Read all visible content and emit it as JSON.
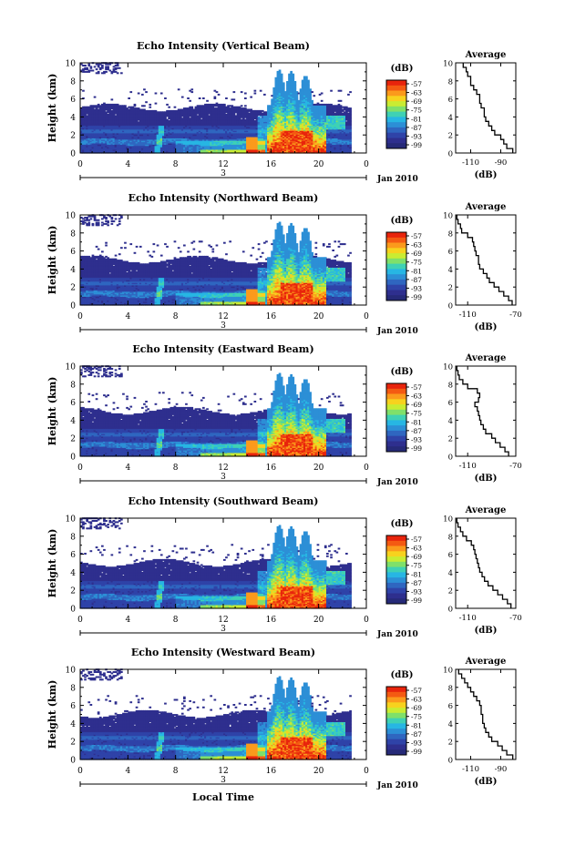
{
  "chart_data": [
    {
      "type": "heatmap",
      "title": "Echo Intensity (Vertical Beam)",
      "ylabel": "Height (km)",
      "yticks": [
        "0",
        "2",
        "4",
        "6",
        "8",
        "10"
      ],
      "ylim": [
        0,
        10
      ],
      "xticks": [
        "0",
        "4",
        "8",
        "12",
        "16",
        "20",
        "0"
      ],
      "xlim": [
        0,
        24
      ],
      "day_label": "3",
      "date_label": "Jan 2010",
      "colorbar": {
        "unit": "(dB)",
        "ticks": [
          "-57",
          "-63",
          "-69",
          "-75",
          "-81",
          "-87",
          "-93",
          "-99"
        ]
      },
      "profile": {
        "title": "Average",
        "xticks": [
          "-110",
          "-90"
        ],
        "xlim": [
          -120,
          -80
        ],
        "xlabel": "(dB)",
        "yticks": [
          "0",
          "2",
          "4",
          "6",
          "8",
          "10"
        ],
        "heights": [
          0,
          0.5,
          1,
          1.5,
          2,
          2.5,
          3,
          3.5,
          4,
          4.5,
          5,
          5.5,
          6,
          6.5,
          7,
          7.5,
          8,
          8.5,
          9,
          9.5
        ],
        "values": [
          -82,
          -86,
          -88,
          -90,
          -94,
          -96,
          -98,
          -100,
          -101,
          -101,
          -103,
          -104,
          -104,
          -106,
          -108,
          -110,
          -110,
          -112,
          -113,
          -115
        ]
      }
    },
    {
      "type": "heatmap",
      "title": "Echo Intensity (Northward Beam)",
      "ylabel": "Height (km)",
      "yticks": [
        "0",
        "2",
        "4",
        "6",
        "8",
        "10"
      ],
      "ylim": [
        0,
        10
      ],
      "xticks": [
        "0",
        "4",
        "8",
        "12",
        "16",
        "20",
        "0"
      ],
      "xlim": [
        0,
        24
      ],
      "day_label": "3",
      "date_label": "Jan 2010",
      "colorbar": {
        "unit": "(dB)",
        "ticks": [
          "-57",
          "-63",
          "-69",
          "-75",
          "-81",
          "-87",
          "-93",
          "-99"
        ]
      },
      "profile": {
        "title": "Average",
        "xticks": [
          "-110",
          "-70"
        ],
        "xlim": [
          -120,
          -70
        ],
        "xlabel": "(dB)",
        "yticks": [
          "0",
          "2",
          "4",
          "6",
          "8",
          "10"
        ],
        "heights": [
          0,
          0.5,
          1,
          1.5,
          2,
          2.5,
          3,
          3.5,
          4,
          4.5,
          5,
          5.5,
          6,
          6.5,
          7,
          7.5,
          8,
          8.5,
          9,
          9.5
        ],
        "values": [
          -73,
          -76,
          -80,
          -84,
          -88,
          -92,
          -94,
          -97,
          -100,
          -101,
          -101,
          -103,
          -104,
          -105,
          -106,
          -110,
          -115,
          -116,
          -118,
          -119
        ]
      }
    },
    {
      "type": "heatmap",
      "title": "Echo Intensity (Eastward Beam)",
      "ylabel": "Height (km)",
      "yticks": [
        "0",
        "2",
        "4",
        "6",
        "8",
        "10"
      ],
      "ylim": [
        0,
        10
      ],
      "xticks": [
        "0",
        "4",
        "8",
        "12",
        "16",
        "20",
        "0"
      ],
      "xlim": [
        0,
        24
      ],
      "day_label": "3",
      "date_label": "Jan 2010",
      "colorbar": {
        "unit": "(dB)",
        "ticks": [
          "-57",
          "-63",
          "-69",
          "-75",
          "-81",
          "-87",
          "-93",
          "-99"
        ]
      },
      "profile": {
        "title": "Average",
        "xticks": [
          "-110",
          "-70"
        ],
        "xlim": [
          -120,
          -70
        ],
        "xlabel": "(dB)",
        "yticks": [
          "0",
          "2",
          "4",
          "6",
          "8",
          "10"
        ],
        "heights": [
          0,
          0.5,
          1,
          1.5,
          2,
          2.5,
          3,
          3.5,
          4,
          4.5,
          5,
          5.5,
          6,
          6.5,
          7,
          7.5,
          8,
          8.5,
          9,
          9.5
        ],
        "values": [
          -76,
          -79,
          -83,
          -87,
          -90,
          -95,
          -97,
          -99,
          -100,
          -101,
          -102,
          -104,
          -101,
          -100,
          -102,
          -110,
          -114,
          -117,
          -118,
          -119
        ]
      }
    },
    {
      "type": "heatmap",
      "title": "Echo Intensity (Southward Beam)",
      "ylabel": "Height (km)",
      "yticks": [
        "0",
        "2",
        "4",
        "6",
        "8",
        "10"
      ],
      "ylim": [
        0,
        10
      ],
      "xticks": [
        "0",
        "4",
        "8",
        "12",
        "16",
        "20",
        "0"
      ],
      "xlim": [
        0,
        24
      ],
      "day_label": "3",
      "date_label": "Jan 2010",
      "colorbar": {
        "unit": "(dB)",
        "ticks": [
          "-57",
          "-63",
          "-69",
          "-75",
          "-81",
          "-87",
          "-93",
          "-99"
        ]
      },
      "profile": {
        "title": "Average",
        "xticks": [
          "-110",
          "-70"
        ],
        "xlim": [
          -120,
          -70
        ],
        "xlabel": "(dB)",
        "yticks": [
          "0",
          "2",
          "4",
          "6",
          "8",
          "10"
        ],
        "heights": [
          0,
          0.5,
          1,
          1.5,
          2,
          2.5,
          3,
          3.5,
          4,
          4.5,
          5,
          5.5,
          6,
          6.5,
          7,
          7.5,
          8,
          8.5,
          9,
          9.5
        ],
        "values": [
          -74,
          -77,
          -81,
          -85,
          -89,
          -93,
          -96,
          -98,
          -100,
          -101,
          -102,
          -103,
          -104,
          -105,
          -107,
          -111,
          -114,
          -116,
          -118,
          -119
        ]
      }
    },
    {
      "type": "heatmap",
      "title": "Echo Intensity (Westward Beam)",
      "ylabel": "Height (km)",
      "yticks": [
        "0",
        "2",
        "4",
        "6",
        "8",
        "10"
      ],
      "ylim": [
        0,
        10
      ],
      "xticks": [
        "0",
        "4",
        "8",
        "12",
        "16",
        "20",
        "0"
      ],
      "xlim": [
        0,
        24
      ],
      "day_label": "3",
      "date_label": "Jan 2010",
      "xlabel": "Local Time",
      "colorbar": {
        "unit": "(dB)",
        "ticks": [
          "-57",
          "-63",
          "-69",
          "-75",
          "-81",
          "-87",
          "-93",
          "-99"
        ]
      },
      "profile": {
        "title": "Average",
        "xticks": [
          "-110",
          "-90"
        ],
        "xlim": [
          -120,
          -80
        ],
        "xlabel": "(dB)",
        "yticks": [
          "0",
          "2",
          "4",
          "6",
          "8",
          "10"
        ],
        "heights": [
          0,
          0.5,
          1,
          1.5,
          2,
          2.5,
          3,
          3.5,
          4,
          4.5,
          5,
          5.5,
          6,
          6.5,
          7,
          7.5,
          8,
          8.5,
          9,
          9.5
        ],
        "values": [
          -82,
          -86,
          -89,
          -92,
          -96,
          -98,
          -100,
          -101,
          -102,
          -102,
          -103,
          -103,
          -104,
          -106,
          -108,
          -110,
          -112,
          -114,
          -116,
          -118
        ]
      }
    }
  ]
}
